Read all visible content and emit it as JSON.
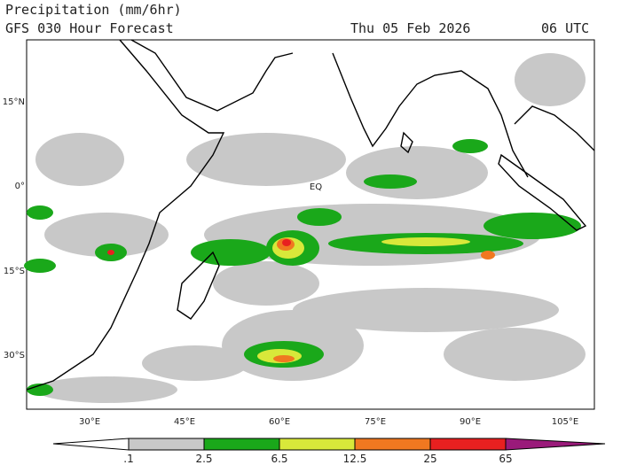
{
  "header": {
    "title": "Precipitation (mm/6hr)",
    "subtitle": "GFS 030 Hour Forecast",
    "date": "Thu 05 Feb 2026",
    "time": "06 UTC"
  },
  "map": {
    "lat_labels": [
      "15°N",
      "0°",
      "15°S",
      "30°S"
    ],
    "lon_labels": [
      "30°E",
      "45°E",
      "60°E",
      "75°E",
      "90°E",
      "105°E"
    ],
    "equator_label": "EQ"
  },
  "colorbar": {
    "labels": [
      ".1",
      "2.5",
      "6.5",
      "12.5",
      "25",
      "65"
    ]
  }
}
